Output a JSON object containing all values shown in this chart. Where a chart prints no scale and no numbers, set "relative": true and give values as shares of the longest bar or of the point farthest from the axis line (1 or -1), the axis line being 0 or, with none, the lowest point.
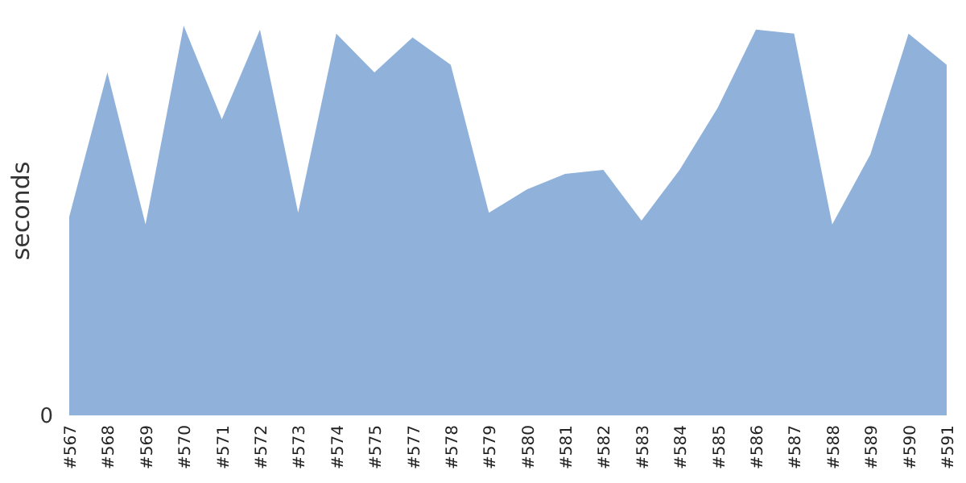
{
  "chart_data": {
    "type": "area",
    "ylabel": "seconds",
    "relative": true,
    "annotations": [
      "0"
    ],
    "categories": [
      "#567",
      "#568",
      "#569",
      "#570",
      "#571",
      "#572",
      "#573",
      "#574",
      "#575",
      "#577",
      "#578",
      "#579",
      "#580",
      "#581",
      "#582",
      "#583",
      "#584",
      "#585",
      "#586",
      "#587",
      "#588",
      "#589",
      "#590",
      "#591"
    ],
    "series": [
      {
        "color": "#8fb1da",
        "values": [
          0.51,
          0.88,
          0.49,
          1,
          0.76,
          0.99,
          0.52,
          0.98,
          0.88,
          0.97,
          0.9,
          0.52,
          0.58,
          0.62,
          0.63,
          0.5,
          0.63,
          0.79,
          0.99,
          0.98,
          0.49,
          0.67,
          0.98,
          0.9
        ]
      }
    ]
  }
}
